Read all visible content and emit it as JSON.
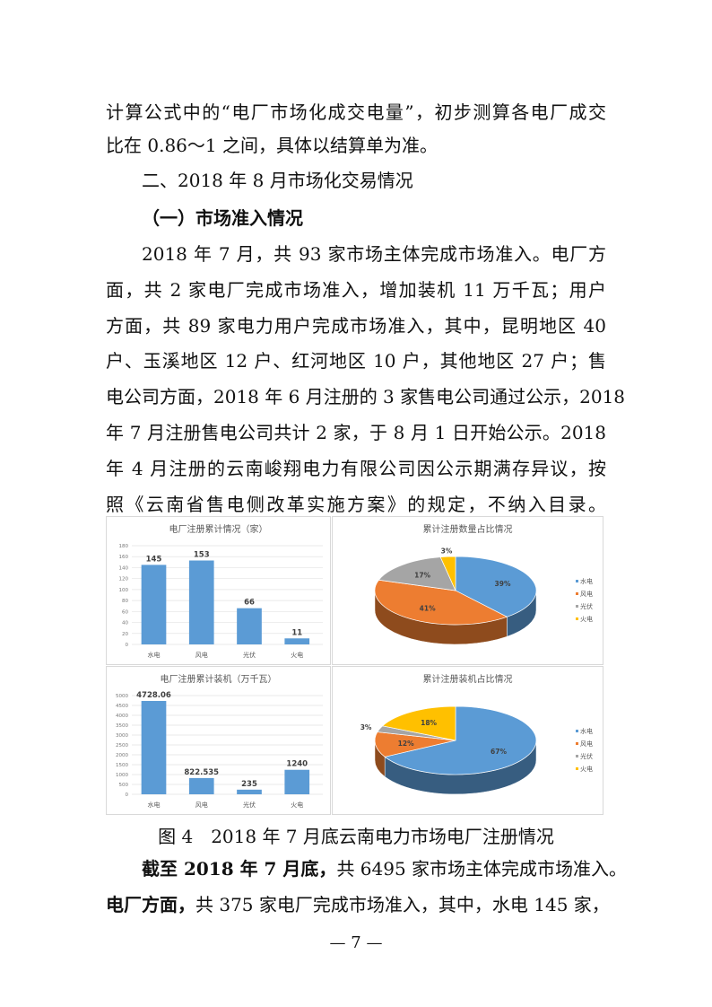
{
  "body": {
    "p1": [
      "计算公式中的“电厂市场化成交电量”，初步测算各电厂成交",
      "比在 0.86～1 之间，具体以结算单为准。"
    ],
    "heading": "二、2018 年 8 月市场化交易情况",
    "subheading": "（一）市场准入情况",
    "p2": [
      "2018 年 7 月，共 93 家市场主体完成市场准入。电厂方",
      "面，共 2 家电厂完成市场准入，增加装机 11 万千瓦；用户",
      "方面，共 89 家电力用户完成市场准入，其中，昆明地区 40",
      "户、玉溪地区 12 户、红河地区 10 户，其他地区 27 户；售",
      "电公司方面，2018 年 6 月注册的 3 家售电公司通过公示，2018",
      "年 7 月注册售电公司共计 2 家，于 8 月 1 日开始公示。2018",
      "年 4 月注册的云南峻翔电力有限公司因公示期满存异议，按",
      "照《云南省售电侧改革实施方案》的规定，不纳入目录。"
    ],
    "caption": "图 4　2018 年 7 月底云南电力市场电厂注册情况",
    "p3a_bold": "截至 2018 年 7 月底，",
    "p3a": "共 6495 家市场主体完成市场准入。",
    "p3b_bold": "电厂方面，",
    "p3b": "共 375 家电厂完成市场准入，其中，水电 145 家，",
    "page_number": "— 7 —"
  },
  "chart_data": [
    {
      "type": "bar",
      "title": "电厂注册累计情况（家）",
      "categories": [
        "水电",
        "风电",
        "光伏",
        "火电"
      ],
      "values": [
        145,
        153,
        66,
        11
      ],
      "data_labels": [
        "145",
        "153",
        "66",
        "11"
      ],
      "ylim": [
        0,
        180
      ],
      "yticks": [
        0,
        20,
        40,
        60,
        80,
        100,
        120,
        140,
        160,
        180
      ],
      "grid": true,
      "color": "#5b9bd5"
    },
    {
      "type": "pie",
      "title": "累计注册数量占比情况",
      "categories": [
        "水电",
        "风电",
        "光伏",
        "火电"
      ],
      "values": [
        39,
        41,
        17,
        3
      ],
      "data_labels": [
        "39%",
        "41%",
        "17%",
        "3%"
      ],
      "colors": [
        "#5b9bd5",
        "#ed7d31",
        "#a5a5a5",
        "#ffc000"
      ],
      "legend": "right"
    },
    {
      "type": "bar",
      "title": "电厂注册累计装机（万千瓦）",
      "categories": [
        "水电",
        "风电",
        "光伏",
        "火电"
      ],
      "values": [
        4728.06,
        822.535,
        235,
        1240
      ],
      "data_labels": [
        "4728.06",
        "822.535",
        "235",
        "1240"
      ],
      "ylim": [
        0,
        5000
      ],
      "yticks": [
        0,
        500,
        1000,
        1500,
        2000,
        2500,
        3000,
        3500,
        4000,
        4500,
        5000
      ],
      "grid": true,
      "color": "#5b9bd5"
    },
    {
      "type": "pie",
      "title": "累计注册装机占比情况",
      "categories": [
        "水电",
        "风电",
        "光伏",
        "火电"
      ],
      "values": [
        67,
        12,
        3,
        18
      ],
      "data_labels": [
        "67%",
        "12%",
        "3%",
        "18%"
      ],
      "colors": [
        "#5b9bd5",
        "#ed7d31",
        "#a5a5a5",
        "#ffc000"
      ],
      "legend": "right"
    }
  ]
}
